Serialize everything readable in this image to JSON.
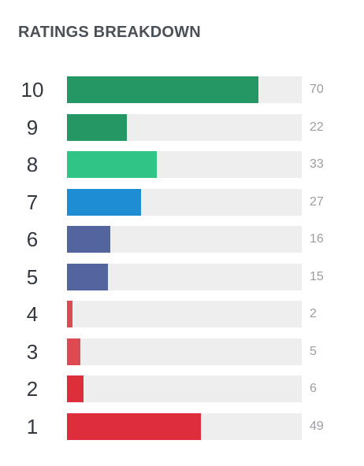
{
  "title": "RATINGS BREAKDOWN",
  "chart_data": {
    "type": "bar",
    "orientation": "horizontal",
    "title": "RATINGS BREAKDOWN",
    "xlabel": "",
    "ylabel": "",
    "xlim": [
      0,
      86
    ],
    "grid": false,
    "legend": "none",
    "bars": [
      {
        "label": "10",
        "value": 70,
        "value_label": "70",
        "color": "#249764"
      },
      {
        "label": "9",
        "value": 22,
        "value_label": "22",
        "color": "#249764"
      },
      {
        "label": "8",
        "value": 33,
        "value_label": "33",
        "color": "#30c586"
      },
      {
        "label": "7",
        "value": 27,
        "value_label": "27",
        "color": "#1f8dd4"
      },
      {
        "label": "6",
        "value": 16,
        "value_label": "16",
        "color": "#52659f"
      },
      {
        "label": "5",
        "value": 15,
        "value_label": "15",
        "color": "#52659f"
      },
      {
        "label": "4",
        "value": 2,
        "value_label": "2",
        "color": "#de4a52"
      },
      {
        "label": "3",
        "value": 5,
        "value_label": "5",
        "color": "#de4a52"
      },
      {
        "label": "2",
        "value": 6,
        "value_label": "6",
        "color": "#de2e3c"
      },
      {
        "label": "1",
        "value": 49,
        "value_label": "49",
        "color": "#de2e3c"
      }
    ]
  }
}
